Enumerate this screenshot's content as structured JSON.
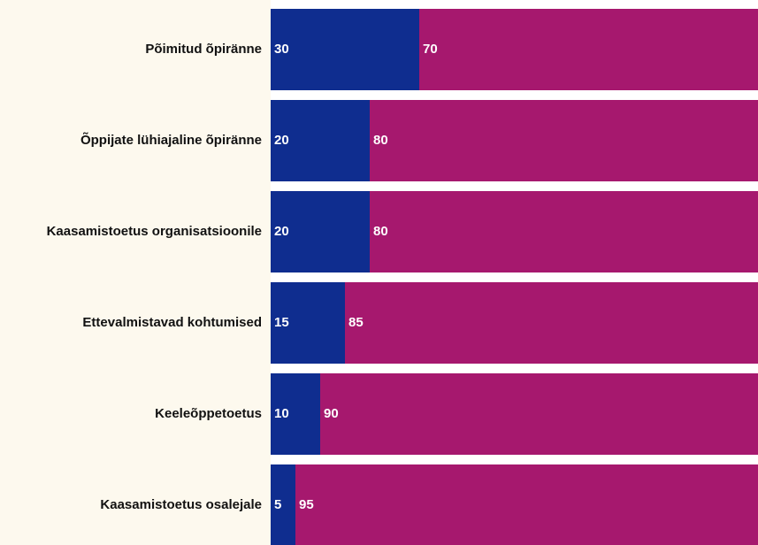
{
  "chart_data": {
    "type": "stacked-bar-horizontal",
    "categories": [
      "Põimitud õpiränne",
      "Õppijate lühiajaline õpiränne",
      "Kaasamistoetus organisatsioonile",
      "Ettevalmistavad kohtumised",
      "Keeleõppetoetus",
      "Kaasamistoetus osalejale"
    ],
    "series": [
      {
        "color": "#0f2d8f",
        "values": [
          30,
          20,
          20,
          15,
          10,
          5
        ]
      },
      {
        "color": "#a6186e",
        "values": [
          70,
          80,
          80,
          85,
          90,
          95
        ]
      }
    ],
    "xlim": [
      0,
      100
    ]
  }
}
